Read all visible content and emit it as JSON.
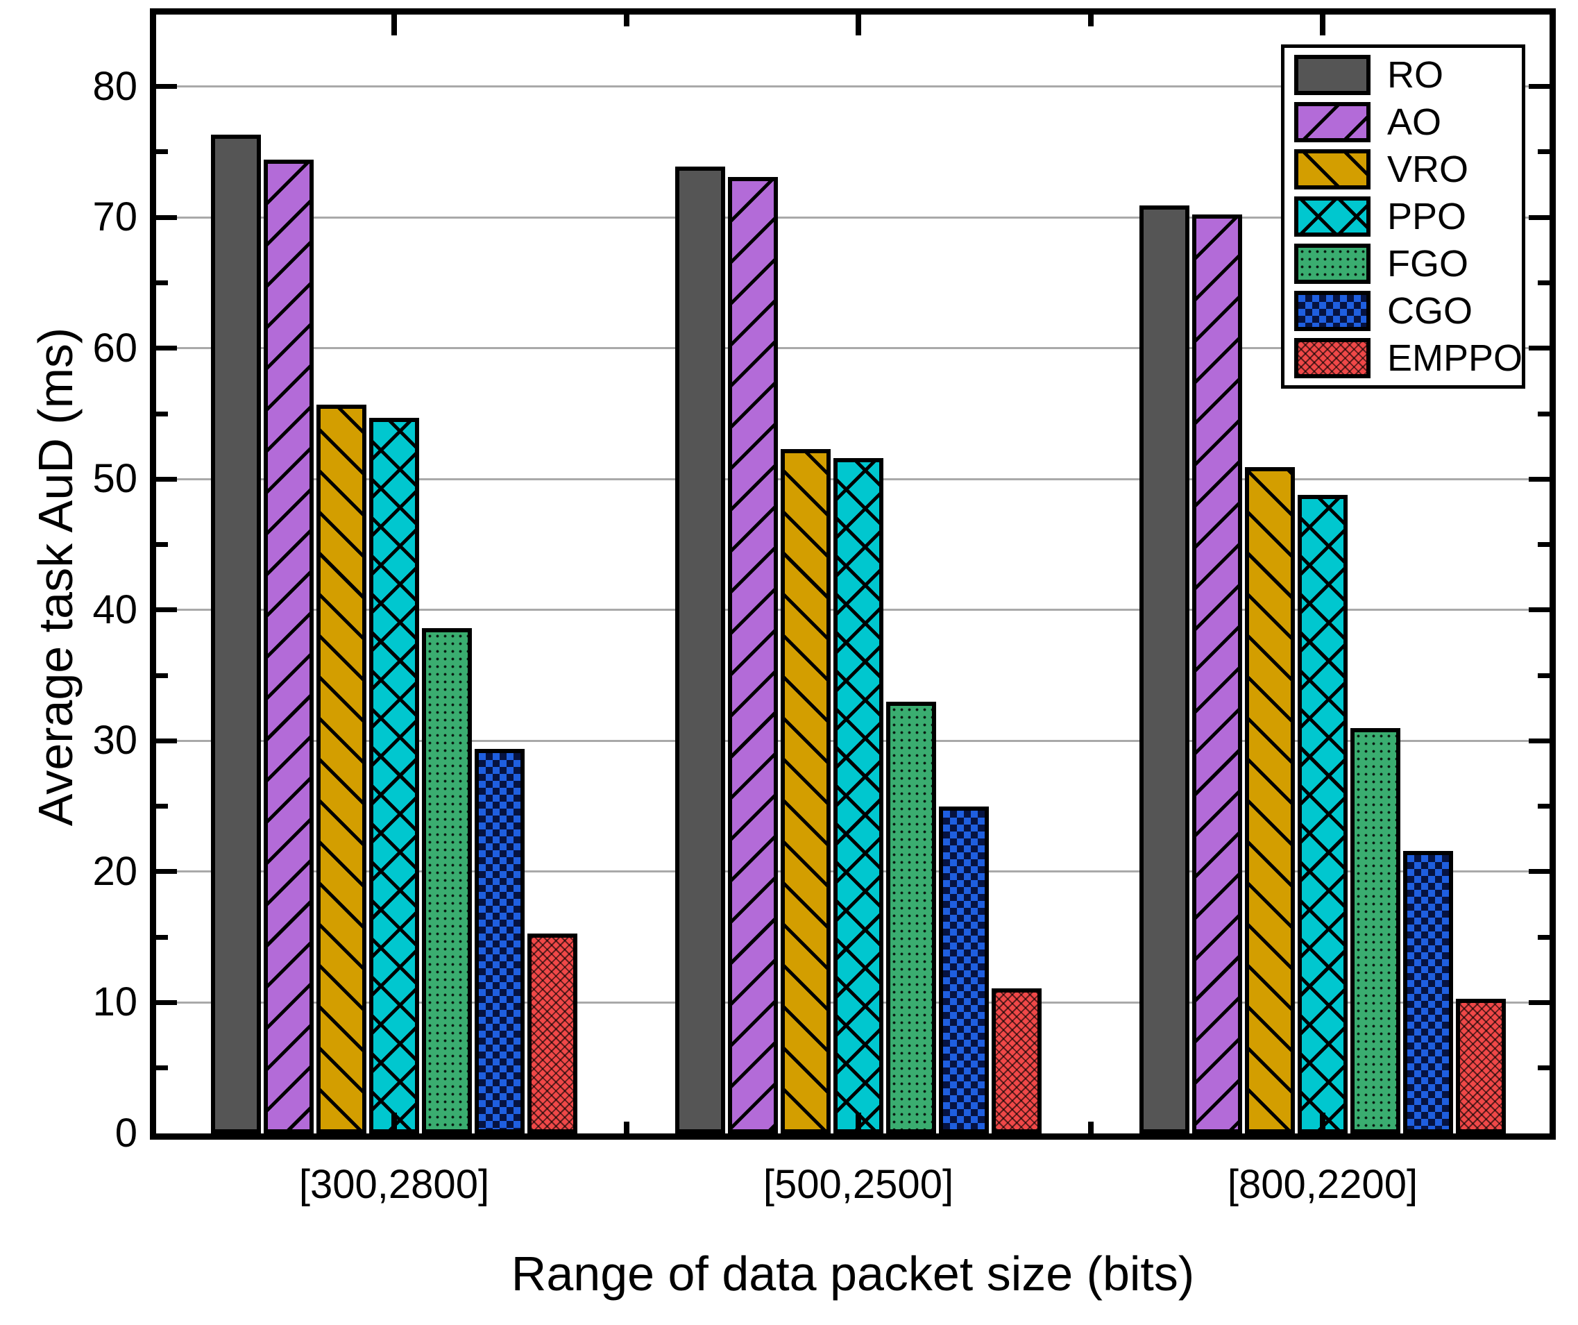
{
  "chart_data": {
    "type": "bar",
    "title": "",
    "xlabel": "Range of data packet size (bits)",
    "ylabel": "Average task AuD (ms)",
    "categories": [
      "[300,2800]",
      "[500,2500]",
      "[800,2200]"
    ],
    "series": [
      {
        "name": "RO",
        "color": "#555555",
        "hatch": "solid",
        "values": [
          76.3,
          73.9,
          70.9
        ]
      },
      {
        "name": "AO",
        "color": "#b36bd8",
        "hatch": "diagonal-up",
        "values": [
          74.4,
          73.1,
          70.2
        ]
      },
      {
        "name": "VRO",
        "color": "#d39e00",
        "hatch": "diagonal-down",
        "values": [
          55.7,
          52.3,
          50.9
        ]
      },
      {
        "name": "PPO",
        "color": "#00c7cf",
        "hatch": "crosshatch",
        "values": [
          54.7,
          51.6,
          48.8
        ]
      },
      {
        "name": "FGO",
        "color": "#3aad70",
        "hatch": "dots",
        "values": [
          38.6,
          33.0,
          31.0
        ]
      },
      {
        "name": "CGO",
        "color": "#1f5fe0",
        "hatch": "checker",
        "values": [
          29.4,
          25.0,
          21.6
        ]
      },
      {
        "name": "EMPPO",
        "color": "#f04848",
        "hatch": "fine-cross",
        "values": [
          15.3,
          11.1,
          10.3
        ]
      }
    ],
    "ylim": [
      0,
      85.5
    ],
    "yticks_major": [
      0,
      10,
      20,
      30,
      40,
      50,
      60,
      70,
      80
    ],
    "yticks_minor": [
      5,
      15,
      25,
      35,
      45,
      55,
      65,
      75
    ],
    "grid": "horizontal-major",
    "legend_position": "top-right",
    "frame": "box-with-inward-ticks"
  },
  "colors": {
    "grid": "#a9a9a9",
    "spine": "#000000",
    "background": "#ffffff"
  }
}
